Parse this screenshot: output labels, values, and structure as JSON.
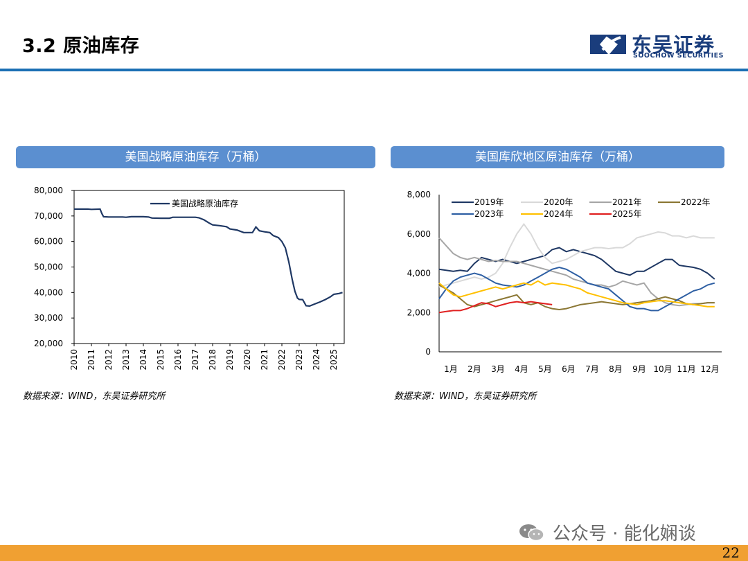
{
  "page": {
    "title": "3.2 原油库存",
    "logo_cn": "东吴证券",
    "logo_en": "SOOCHOW SECURITIES",
    "watermark": "公众号 · 能化娴谈",
    "page_number": "22",
    "colors": {
      "accent": "#1b6fb4",
      "panel_header": "#5b8fd0",
      "footer": "#f0a032"
    }
  },
  "left_panel": {
    "header": "美国战略原油库存（万桶）",
    "source": "数据来源：WIND，东吴证券研究所"
  },
  "right_panel": {
    "header": "美国库欣地区原油库存（万桶）",
    "source": "数据来源：WIND，东吴证券研究所"
  },
  "chart_data": [
    {
      "type": "line",
      "title": "美国战略原油库存（万桶）",
      "ylim": [
        20000,
        80000
      ],
      "yticks": [
        "80,000",
        "70,000",
        "60,000",
        "50,000",
        "40,000",
        "30,000",
        "20,000"
      ],
      "xlim": [
        2010,
        2025.6
      ],
      "xticks": [
        "2010",
        "2011",
        "2012",
        "2013",
        "2014",
        "2015",
        "2016",
        "2017",
        "2018",
        "2019",
        "2020",
        "2021",
        "2022",
        "2023",
        "2024",
        "2025"
      ],
      "legend": "top-center",
      "series": [
        {
          "name": "美国战略原油库存",
          "color": "#1f3864",
          "points": [
            [
              2010.0,
              72700
            ],
            [
              2010.8,
              72700
            ],
            [
              2011.0,
              72600
            ],
            [
              2011.5,
              72700
            ],
            [
              2011.6,
              71000
            ],
            [
              2011.7,
              69700
            ],
            [
              2012.0,
              69600
            ],
            [
              2012.8,
              69600
            ],
            [
              2013.0,
              69500
            ],
            [
              2013.3,
              69700
            ],
            [
              2014.0,
              69700
            ],
            [
              2014.3,
              69600
            ],
            [
              2014.5,
              69200
            ],
            [
              2015.0,
              69100
            ],
            [
              2015.5,
              69100
            ],
            [
              2015.7,
              69500
            ],
            [
              2016.0,
              69500
            ],
            [
              2017.0,
              69500
            ],
            [
              2017.2,
              69300
            ],
            [
              2017.5,
              68500
            ],
            [
              2017.8,
              67200
            ],
            [
              2018.0,
              66500
            ],
            [
              2018.4,
              66200
            ],
            [
              2018.8,
              65800
            ],
            [
              2019.0,
              64900
            ],
            [
              2019.4,
              64500
            ],
            [
              2019.8,
              63500
            ],
            [
              2020.0,
              63500
            ],
            [
              2020.3,
              63500
            ],
            [
              2020.5,
              65700
            ],
            [
              2020.7,
              64200
            ],
            [
              2021.0,
              63800
            ],
            [
              2021.3,
              63500
            ],
            [
              2021.5,
              62300
            ],
            [
              2021.8,
              61500
            ],
            [
              2022.0,
              60000
            ],
            [
              2022.2,
              57500
            ],
            [
              2022.4,
              52000
            ],
            [
              2022.6,
              45000
            ],
            [
              2022.75,
              40500
            ],
            [
              2022.9,
              37800
            ],
            [
              2023.0,
              37300
            ],
            [
              2023.2,
              37200
            ],
            [
              2023.4,
              34800
            ],
            [
              2023.6,
              34700
            ],
            [
              2023.9,
              35500
            ],
            [
              2024.2,
              36300
            ],
            [
              2024.5,
              37200
            ],
            [
              2024.8,
              38300
            ],
            [
              2025.0,
              39300
            ],
            [
              2025.3,
              39600
            ],
            [
              2025.5,
              40000
            ]
          ]
        }
      ]
    },
    {
      "type": "line",
      "title": "美国库欣地区原油库存（万桶）",
      "ylim": [
        0,
        8000
      ],
      "yticks": [
        "8,000",
        "6,000",
        "4,000",
        "2,000",
        "0"
      ],
      "xticks": [
        "1月",
        "2月",
        "3月",
        "4月",
        "5月",
        "6月",
        "7月",
        "8月",
        "9月",
        "10月",
        "11月",
        "12月"
      ],
      "xlim": [
        0,
        12
      ],
      "legend": "top",
      "series": [
        {
          "name": "2019年",
          "color": "#1f3864",
          "values": [
            4200,
            4150,
            4100,
            4150,
            4100,
            4500,
            4800,
            4700,
            4600,
            4700,
            4600,
            4500,
            4600,
            4700,
            4800,
            4900,
            5200,
            5300,
            5100,
            5200,
            5100,
            5000,
            4900,
            4700,
            4400,
            4100,
            4000,
            3900,
            4100,
            4100,
            4300,
            4500,
            4700,
            4700,
            4400,
            4350,
            4300,
            4200,
            4000,
            3700
          ]
        },
        {
          "name": "2020年",
          "color": "#d9d9d9",
          "values": [
            3300,
            3400,
            3500,
            3600,
            3700,
            3800,
            3700,
            3800,
            4000,
            4500,
            5300,
            6000,
            6500,
            6000,
            5300,
            4800,
            4500,
            4600,
            4700,
            4900,
            5100,
            5200,
            5300,
            5300,
            5250,
            5300,
            5300,
            5500,
            5800,
            5900,
            6000,
            6100,
            6050,
            5900,
            5900,
            5800,
            5900,
            5800,
            5800,
            5800
          ]
        },
        {
          "name": "2021年",
          "color": "#a6a6a6",
          "values": [
            5800,
            5400,
            5000,
            4800,
            4700,
            4800,
            4700,
            4600,
            4650,
            4600,
            4600,
            4600,
            4500,
            4400,
            4300,
            4200,
            4100,
            4000,
            3900,
            3700,
            3600,
            3500,
            3400,
            3400,
            3300,
            3400,
            3600,
            3500,
            3400,
            3500,
            3000,
            2700,
            2500,
            2400,
            2350,
            2400,
            2450,
            2450,
            2500,
            2500
          ]
        },
        {
          "name": "2022年",
          "color": "#8b7734",
          "values": [
            3400,
            3200,
            3000,
            2700,
            2400,
            2300,
            2400,
            2500,
            2600,
            2700,
            2800,
            2900,
            2500,
            2400,
            2500,
            2300,
            2200,
            2150,
            2200,
            2300,
            2400,
            2450,
            2500,
            2550,
            2500,
            2450,
            2400,
            2450,
            2500,
            2550,
            2600,
            2700,
            2800,
            2700,
            2600,
            2450,
            2400,
            2450,
            2500,
            2500
          ]
        },
        {
          "name": "2023年",
          "color": "#2e5fa3",
          "values": [
            2700,
            3200,
            3600,
            3800,
            3900,
            4000,
            3900,
            3700,
            3500,
            3400,
            3350,
            3300,
            3400,
            3600,
            3800,
            4000,
            4200,
            4300,
            4200,
            4000,
            3800,
            3500,
            3400,
            3300,
            3200,
            2900,
            2600,
            2300,
            2200,
            2200,
            2100,
            2100,
            2300,
            2500,
            2700,
            2900,
            3100,
            3200,
            3400,
            3500
          ]
        },
        {
          "name": "2024年",
          "color": "#ffc000",
          "values": [
            3500,
            3200,
            2900,
            2800,
            2900,
            3000,
            3100,
            3200,
            3300,
            3200,
            3300,
            3400,
            3500,
            3400,
            3600,
            3400,
            3500,
            3450,
            3400,
            3300,
            3200,
            3000,
            2900,
            2800,
            2700,
            2600,
            2500,
            2450,
            2400,
            2500,
            2550,
            2600,
            2600,
            2550,
            2500,
            2450,
            2400,
            2350,
            2300,
            2300
          ]
        },
        {
          "name": "2025年",
          "color": "#e02020",
          "values": [
            2000,
            2050,
            2100,
            2100,
            2200,
            2350,
            2500,
            2450,
            2300,
            2400,
            2500,
            2550,
            2500,
            2550,
            2500,
            2450,
            2400
          ]
        }
      ]
    }
  ]
}
